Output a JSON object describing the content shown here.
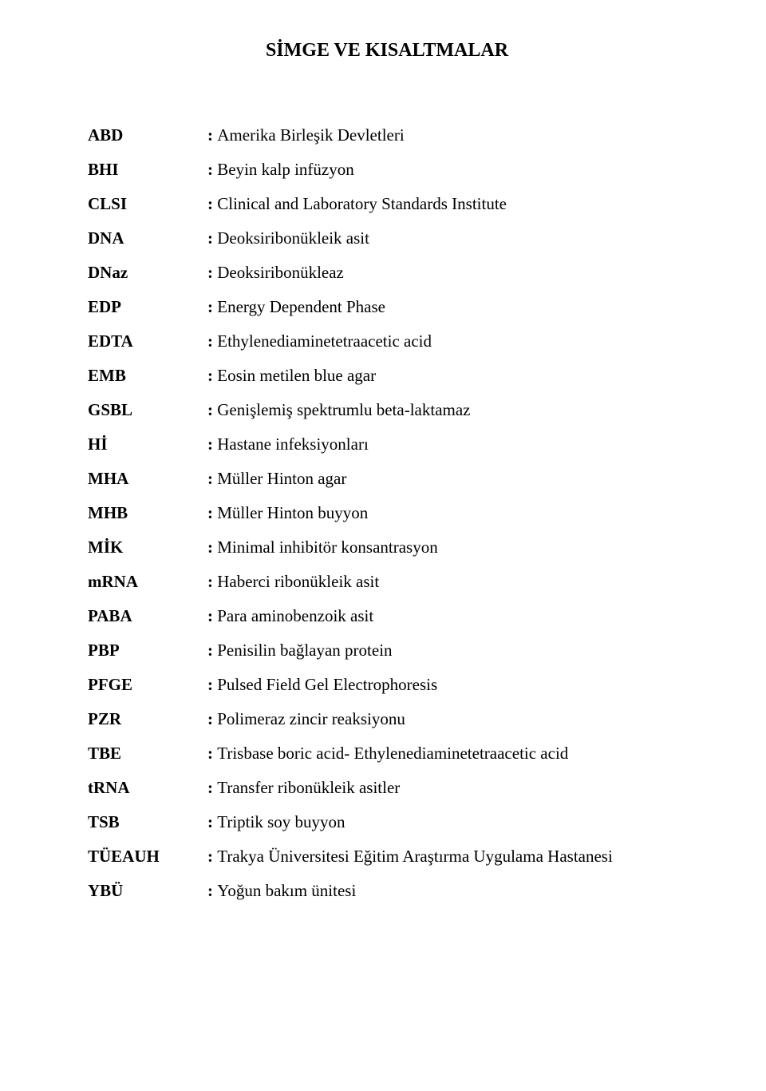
{
  "title": "SİMGE VE KISALTMALAR",
  "rows": [
    {
      "abbrev": "ABD",
      "def": "Amerika Birleşik Devletleri"
    },
    {
      "abbrev": "BHI",
      "def": "Beyin kalp infüzyon"
    },
    {
      "abbrev": "CLSI",
      "def": "Clinical and Laboratory Standards Institute"
    },
    {
      "abbrev": "DNA",
      "def": "Deoksiribonükleik asit"
    },
    {
      "abbrev": "DNaz",
      "def": "Deoksiribonükleaz"
    },
    {
      "abbrev": "EDP",
      "def": "Energy Dependent Phase"
    },
    {
      "abbrev": "EDTA",
      "def": "Ethylenediaminetetraacetic acid"
    },
    {
      "abbrev": "EMB",
      "def": "Eosin metilen blue agar"
    },
    {
      "abbrev": "GSBL",
      "def": "Genişlemiş spektrumlu beta-laktamaz"
    },
    {
      "abbrev": "Hİ",
      "def": "Hastane infeksiyonları"
    },
    {
      "abbrev": "MHA",
      "def": "Müller Hinton agar"
    },
    {
      "abbrev": "MHB",
      "def": "Müller Hinton buyyon"
    },
    {
      "abbrev": "MİK",
      "def": "Minimal inhibitör konsantrasyon"
    },
    {
      "abbrev": "mRNA",
      "def": "Haberci ribonükleik asit"
    },
    {
      "abbrev": "PABA",
      "def": "Para aminobenzoik asit"
    },
    {
      "abbrev": "PBP",
      "def": "Penisilin bağlayan protein"
    },
    {
      "abbrev": "PFGE",
      "def": "Pulsed Field Gel Electrophoresis"
    },
    {
      "abbrev": "PZR",
      "def": "Polimeraz zincir reaksiyonu"
    },
    {
      "abbrev": "TBE",
      "def": "Trisbase boric acid- Ethylenediaminetetraacetic acid"
    },
    {
      "abbrev": "tRNA",
      "def": "Transfer ribonükleik asitler"
    },
    {
      "abbrev": "TSB",
      "def": "Triptik soy buyyon"
    },
    {
      "abbrev": "TÜEAUH",
      "def": "Trakya Üniversitesi Eğitim Araştırma Uygulama Hastanesi"
    },
    {
      "abbrev": "YBÜ",
      "def": "Yoğun bakım ünitesi"
    }
  ],
  "styling": {
    "background_color": "#ffffff",
    "text_color": "#000000",
    "title_fontsize": 24,
    "title_fontweight": "bold",
    "body_fontsize": 21,
    "abbrev_fontweight": "bold",
    "font_family": "Times New Roman",
    "abbrev_column_width": 150,
    "row_gap": 18,
    "colon_prefix": ": "
  }
}
